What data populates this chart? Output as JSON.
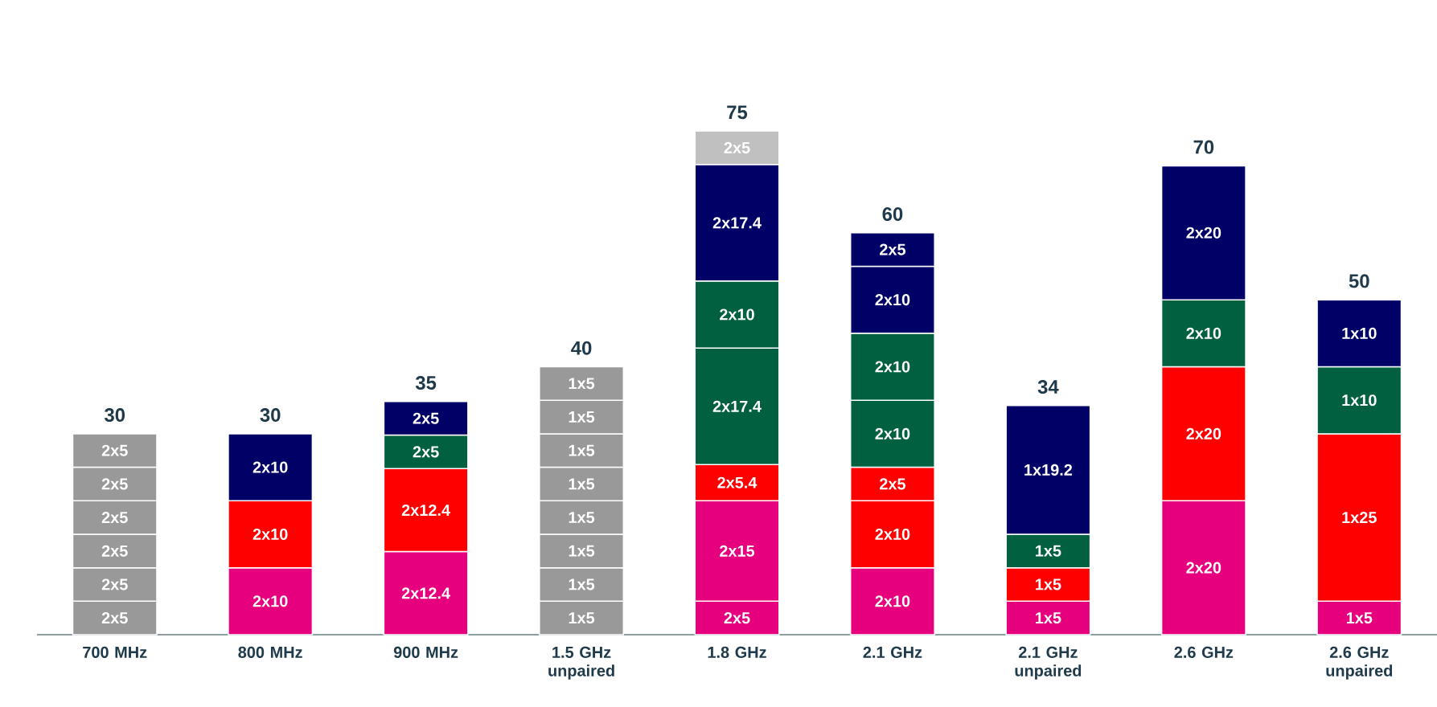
{
  "chart_data": {
    "type": "bar",
    "stacked": true,
    "categories": [
      "700 MHz",
      "800 MHz",
      "900 MHz",
      "1.5 GHz unpaired",
      "1.8 GHz",
      "2.1 GHz",
      "2.1 GHz unpaired",
      "2.6 GHz",
      "2.6 GHz unpaired"
    ],
    "series": [
      {
        "values": [
          5,
          10,
          12.4,
          5,
          5,
          10,
          5,
          20,
          5
        ],
        "value_labels": [
          "2x5",
          "2x10",
          "2x12.4",
          "1x5",
          "2x5",
          "2x10",
          "1x5",
          "2x20",
          "1x5"
        ],
        "colors": [
          "#999999",
          "#e6007e",
          "#e6007e",
          "#999999",
          "#e6007e",
          "#e6007e",
          "#e6007e",
          "#e6007e",
          "#e6007e"
        ]
      },
      {
        "values": [
          5,
          10,
          12.4,
          5,
          15,
          10,
          5,
          20,
          25
        ],
        "value_labels": [
          "2x5",
          "2x10",
          "2x12.4",
          "1x5",
          "2x15",
          "2x10",
          "1x5",
          "2x20",
          "1x25"
        ],
        "colors": [
          "#999999",
          "#ff0000",
          "#ff0000",
          "#999999",
          "#e6007e",
          "#ff0000",
          "#ff0000",
          "#ff0000",
          "#ff0000"
        ]
      },
      {
        "values": [
          5,
          10,
          5,
          5,
          5.4,
          5,
          5,
          10,
          10
        ],
        "value_labels": [
          "2x5",
          "2x10",
          "2x5",
          "1x5",
          "2x5.4",
          "2x5",
          "1x5",
          "2x10",
          "1x10"
        ],
        "colors": [
          "#999999",
          "#000066",
          "#006040",
          "#999999",
          "#ff0000",
          "#ff0000",
          "#006040",
          "#006040",
          "#006040"
        ]
      },
      {
        "values": [
          5,
          null,
          5,
          5,
          17.4,
          10,
          19.2,
          20,
          10
        ],
        "value_labels": [
          "2x5",
          null,
          "2x5",
          "1x5",
          "2x17.4",
          "2x10",
          "1x19.2",
          "2x20",
          "1x10"
        ],
        "colors": [
          "#999999",
          null,
          "#000066",
          "#999999",
          "#006040",
          "#006040",
          "#000066",
          "#000066",
          "#000066"
        ]
      },
      {
        "values": [
          5,
          null,
          null,
          5,
          10,
          10,
          null,
          null,
          null
        ],
        "value_labels": [
          "2x5",
          null,
          null,
          "1x5",
          "2x10",
          "2x10",
          null,
          null,
          null
        ],
        "colors": [
          "#999999",
          null,
          null,
          "#999999",
          "#006040",
          "#006040",
          null,
          null,
          null
        ]
      },
      {
        "values": [
          5,
          null,
          null,
          5,
          17.4,
          10,
          null,
          null,
          null
        ],
        "value_labels": [
          "2x5",
          null,
          null,
          "1x5",
          "2x17.4",
          "2x10",
          null,
          null,
          null
        ],
        "colors": [
          "#999999",
          null,
          null,
          "#999999",
          "#000066",
          "#000066",
          null,
          null,
          null
        ]
      },
      {
        "values": [
          null,
          null,
          null,
          5,
          5,
          5,
          null,
          null,
          null
        ],
        "value_labels": [
          null,
          null,
          null,
          "1x5",
          "2x5",
          "2x5",
          null,
          null,
          null
        ],
        "colors": [
          null,
          null,
          null,
          "#999999",
          "#c0c0c0",
          "#000066",
          null,
          null,
          null
        ]
      },
      {
        "values": [
          null,
          null,
          null,
          5,
          null,
          null,
          null,
          null,
          null
        ],
        "value_labels": [
          null,
          null,
          null,
          "1x5",
          null,
          null,
          null,
          null,
          null
        ],
        "colors": [
          null,
          null,
          null,
          "#999999",
          null,
          null,
          null,
          null,
          null
        ]
      }
    ],
    "totals": [
      "30",
      "30",
      "35",
      "40",
      "75",
      "60",
      "34",
      "70",
      "50"
    ]
  }
}
